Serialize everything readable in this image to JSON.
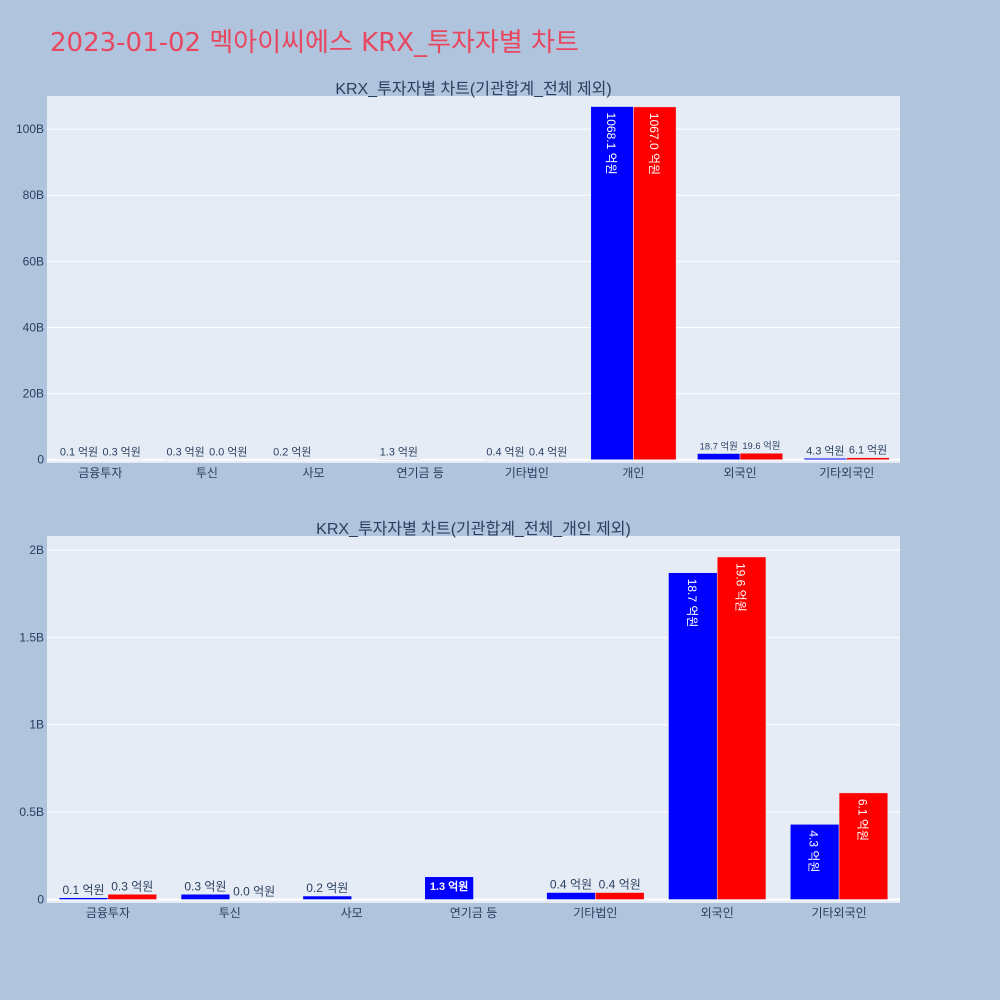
{
  "page": {
    "title": "2023-01-02 멕아이씨에스 KRX_투자자별 차트"
  },
  "colors": {
    "background": "#b0c4de",
    "plot_background": "#e5ecf6",
    "series_1": "#0000ff",
    "series_2": "#ff0000",
    "title": "#e8475f",
    "text": "#2a3f5f"
  },
  "chart_data": [
    {
      "type": "bar",
      "title": "KRX_투자자별 차트(기관합계_전체 제외)",
      "categories": [
        "금융투자",
        "투신",
        "사모",
        "연기금 등",
        "기타법인",
        "개인",
        "외국인",
        "기타외국인"
      ],
      "series": [
        {
          "values": [
            10000000,
            30000000,
            20000000,
            130000000,
            40000000,
            106810000000,
            1870000000,
            430000000
          ],
          "labels": [
            "0.1 억원",
            "0.3 억원",
            "0.2 억원",
            "1.3 억원",
            "0.4 억원",
            "1068.1 억원",
            "18.7 억원",
            "4.3 억원"
          ]
        },
        {
          "values": [
            30000000,
            0,
            null,
            null,
            40000000,
            106700000000,
            1960000000,
            610000000
          ],
          "labels": [
            "0.3 억원",
            "0.0 억원",
            null,
            null,
            "0.4 억원",
            "1067.0 억원",
            "19.6 억원",
            "6.1 억원"
          ]
        }
      ],
      "ylim": [
        -1000000000,
        110000000000
      ],
      "y_ticks": [
        0,
        20000000000,
        40000000000,
        60000000000,
        80000000000,
        100000000000
      ],
      "y_tick_labels": [
        "0",
        "20B",
        "40B",
        "60B",
        "80B",
        "100B"
      ],
      "grid": true,
      "barmode": "group"
    },
    {
      "type": "bar",
      "title": "KRX_투자자별 차트(기관합계_전체_개인 제외)",
      "categories": [
        "금융투자",
        "투신",
        "사모",
        "연기금 등",
        "기타법인",
        "외국인",
        "기타외국인"
      ],
      "series": [
        {
          "values": [
            10000000,
            30000000,
            20000000,
            130000000,
            40000000,
            1870000000,
            430000000
          ],
          "labels": [
            "0.1 억원",
            "0.3 억원",
            "0.2 억원",
            "1.3 억원",
            "0.4 억원",
            "18.7 억원",
            "4.3 억원"
          ]
        },
        {
          "values": [
            30000000,
            0,
            null,
            null,
            40000000,
            1960000000,
            610000000
          ],
          "labels": [
            "0.3 억원",
            "0.0 억원",
            null,
            null,
            "0.4 억원",
            "19.6 억원",
            "6.1 억원"
          ]
        }
      ],
      "ylim": [
        -20000000,
        2080000000
      ],
      "y_ticks": [
        0,
        500000000,
        1000000000,
        1500000000,
        2000000000
      ],
      "y_tick_labels": [
        "0",
        "0.5B",
        "1B",
        "1.5B",
        "2B"
      ],
      "grid": true,
      "barmode": "group"
    }
  ]
}
